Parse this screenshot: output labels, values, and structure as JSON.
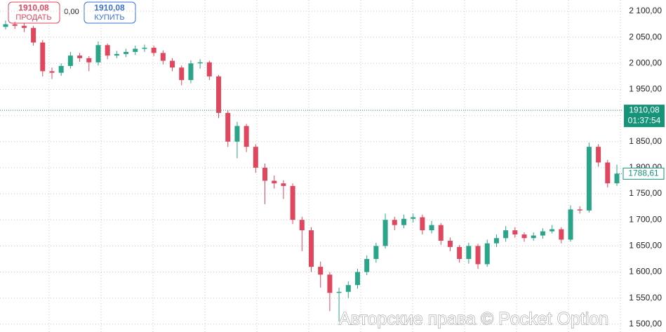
{
  "trade_panel": {
    "sell_price": "1910,08",
    "sell_label": "ПРОДАТЬ",
    "spread": "0,00",
    "buy_price": "1910,08",
    "buy_label": "КУПИТЬ"
  },
  "watermark": "Авторские права © Pocket Option",
  "chart_data": {
    "type": "candlestick",
    "open": [
      2070,
      2075,
      2072,
      2068,
      2040,
      1985,
      1982,
      1995,
      2015,
      2010,
      2002,
      2035,
      2015,
      2018,
      2022,
      2028,
      2030,
      2020,
      2005,
      1992,
      1968,
      2000,
      2002,
      1975,
      1905,
      1850,
      1880,
      1840,
      1800,
      1775,
      1770,
      1765,
      1700,
      1680,
      1610,
      1595,
      1560,
      1562,
      1575,
      1600,
      1625,
      1650,
      1700,
      1690,
      1702,
      1705,
      1680,
      1690,
      1660,
      1648,
      1625,
      1650,
      1615,
      1655,
      1665,
      1680,
      1672,
      1665,
      1670,
      1678,
      1682,
      1662,
      1720,
      1718,
      1840,
      1810,
      1770
    ],
    "high": [
      2082,
      2080,
      2078,
      2072,
      2045,
      1992,
      2000,
      2022,
      2020,
      2014,
      2042,
      2038,
      2024,
      2028,
      2034,
      2036,
      2034,
      2025,
      2010,
      1996,
      2006,
      2008,
      2005,
      1978,
      1910,
      1888,
      1884,
      1845,
      1808,
      1785,
      1776,
      1770,
      1706,
      1686,
      1620,
      1600,
      1570,
      1582,
      1606,
      1632,
      1656,
      1712,
      1706,
      1710,
      1712,
      1710,
      1698,
      1694,
      1666,
      1652,
      1656,
      1654,
      1662,
      1672,
      1688,
      1686,
      1676,
      1676,
      1684,
      1690,
      1686,
      1728,
      1726,
      1848,
      1845,
      1815,
      1806
    ],
    "low": [
      2065,
      2066,
      2060,
      2034,
      1975,
      1970,
      1976,
      1990,
      2003,
      1985,
      1996,
      2008,
      2010,
      2012,
      2016,
      2022,
      2014,
      1998,
      1985,
      1958,
      1962,
      1990,
      1968,
      1895,
      1840,
      1818,
      1830,
      1790,
      1730,
      1760,
      1740,
      1692,
      1640,
      1600,
      1570,
      1525,
      1505,
      1550,
      1568,
      1594,
      1618,
      1645,
      1680,
      1684,
      1695,
      1672,
      1674,
      1652,
      1640,
      1618,
      1616,
      1606,
      1610,
      1648,
      1658,
      1666,
      1658,
      1660,
      1664,
      1674,
      1655,
      1658,
      1712,
      1714,
      1802,
      1762,
      1765
    ],
    "close": [
      2075,
      2072,
      2068,
      2040,
      1985,
      1982,
      1995,
      2015,
      2010,
      2002,
      2035,
      2015,
      2018,
      2022,
      2028,
      2030,
      2020,
      2005,
      1992,
      1968,
      2000,
      2002,
      1975,
      1905,
      1850,
      1880,
      1840,
      1800,
      1775,
      1770,
      1765,
      1700,
      1680,
      1610,
      1595,
      1560,
      1562,
      1575,
      1600,
      1625,
      1650,
      1700,
      1690,
      1702,
      1705,
      1680,
      1690,
      1660,
      1648,
      1625,
      1650,
      1615,
      1655,
      1665,
      1680,
      1672,
      1665,
      1670,
      1678,
      1682,
      1662,
      1720,
      1718,
      1840,
      1810,
      1770,
      1788.61
    ],
    "up_color": "#2aa58a",
    "down_color": "#e0475e",
    "ylim": [
      1485,
      2121.5
    ],
    "yticks": [
      {
        "value": 1500,
        "label": "1 500,00"
      },
      {
        "value": 1550,
        "label": "1 550,00"
      },
      {
        "value": 1600,
        "label": "1 600,00"
      },
      {
        "value": 1650,
        "label": "1 650,00"
      },
      {
        "value": 1700,
        "label": "1 700,00"
      },
      {
        "value": 1750,
        "label": "1 750,00"
      },
      {
        "value": 1800,
        "label": "1 800,00"
      },
      {
        "value": 1850,
        "label": "1 850,00"
      },
      {
        "value": 1900,
        "label": "1 900,00"
      },
      {
        "value": 1950,
        "label": "1 950,00"
      },
      {
        "value": 2000,
        "label": "2 000,00"
      },
      {
        "value": 2050,
        "label": "2 050,00"
      },
      {
        "value": 2100,
        "label": "2 100,00"
      }
    ],
    "grid": true,
    "current_price": {
      "value": 1910.08,
      "label": "1910,08",
      "timer": "01:37:54"
    },
    "last_price": {
      "value": 1788.61,
      "label": "1788,61"
    }
  }
}
